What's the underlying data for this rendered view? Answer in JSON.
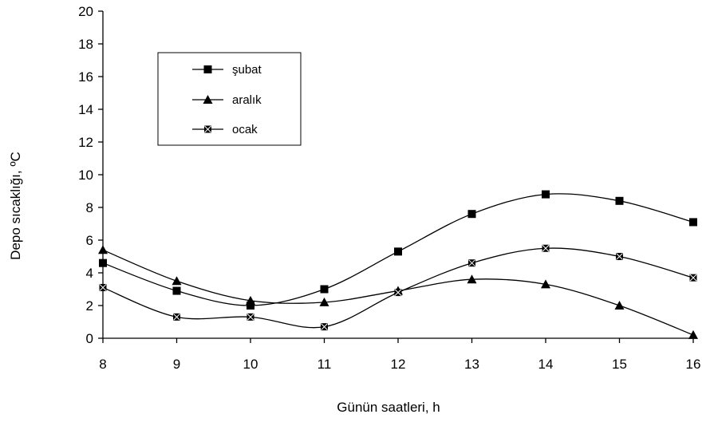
{
  "chart_data": {
    "type": "line",
    "title": "",
    "xlabel": "Günün saatleri, h",
    "ylabel": "Depo sıcaklığı, ºC",
    "x": [
      8,
      9,
      10,
      11,
      12,
      13,
      14,
      15,
      16
    ],
    "xlim": [
      8,
      16
    ],
    "ylim": [
      0,
      20
    ],
    "yticks": [
      0,
      2,
      4,
      6,
      8,
      10,
      12,
      14,
      16,
      18,
      20
    ],
    "grid": false,
    "legend_position": "top-left",
    "series": [
      {
        "name": "şubat",
        "marker": "square",
        "values": [
          4.6,
          2.9,
          2.0,
          3.0,
          5.3,
          7.6,
          8.8,
          8.4,
          7.1
        ]
      },
      {
        "name": "aralık",
        "marker": "triangle",
        "values": [
          5.4,
          3.5,
          2.3,
          2.2,
          2.9,
          3.6,
          3.3,
          2.0,
          0.2
        ]
      },
      {
        "name": "ocak",
        "marker": "star-square",
        "values": [
          3.1,
          1.3,
          1.3,
          0.7,
          2.8,
          4.6,
          5.5,
          5.0,
          3.7
        ]
      }
    ]
  }
}
